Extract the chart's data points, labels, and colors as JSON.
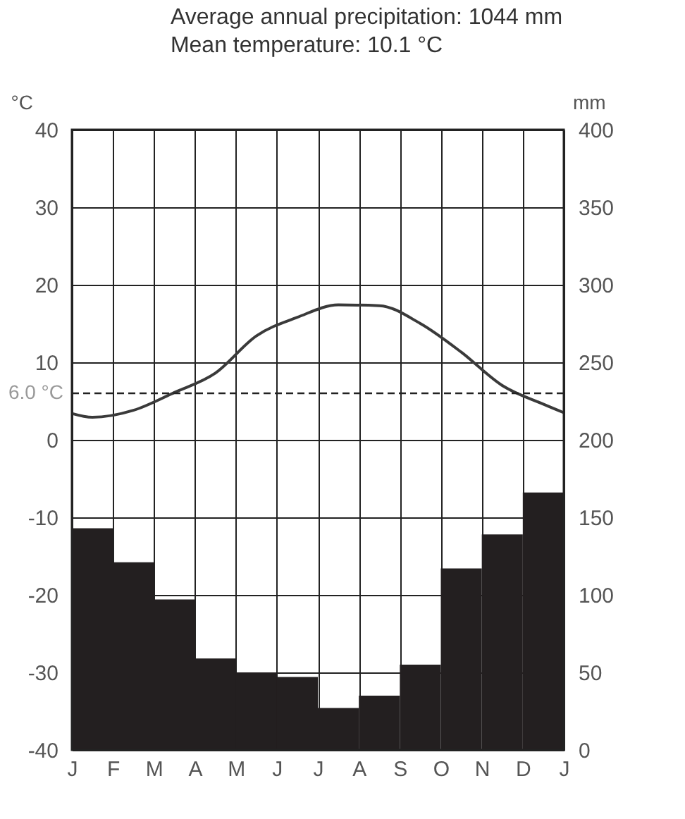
{
  "chart_data": {
    "type": "bar",
    "title": "Average annual precipitation:  1044 mm",
    "subtitle": "Mean temperature:  10.1 °C",
    "ylabel": "°C",
    "y2label": "mm",
    "categories": [
      "J",
      null,
      "F",
      null,
      "M",
      null,
      "A",
      null,
      "M",
      null,
      "J",
      null,
      "J",
      null,
      "A",
      null,
      "S",
      null,
      "O",
      null,
      "N",
      null,
      "D",
      null,
      "J"
    ],
    "ylim": [
      -40,
      40
    ],
    "yticks": [
      -40,
      -30,
      -20,
      -10,
      0,
      10,
      20,
      30,
      40
    ],
    "y2lim": [
      0,
      400
    ],
    "y2ticks": [
      0,
      50,
      100,
      150,
      200,
      250,
      300,
      350,
      400
    ],
    "series": [
      {
        "axis": "y2",
        "color": "#231f20",
        "values": [
          null,
          143,
          null,
          121,
          null,
          97,
          null,
          59,
          null,
          50,
          null,
          47,
          null,
          27,
          null,
          35,
          null,
          55,
          null,
          117,
          null,
          139,
          null,
          166,
          null
        ]
      },
      {
        "type": "line",
        "axis": "y",
        "color": "#3a3a3a",
        "values": [
          3.4,
          2.9,
          null,
          3.8,
          null,
          6.1,
          null,
          8.6,
          null,
          13.4,
          null,
          15.8,
          null,
          17.4,
          null,
          17.3,
          null,
          15.0,
          null,
          11.3,
          null,
          7.0,
          null,
          4.6,
          3.5
        ]
      }
    ],
    "ref_lines": [
      {
        "axis": "y",
        "value": 6.0,
        "label": "6.0 °C",
        "color": "#222222",
        "line_style": "dashed"
      }
    ],
    "grid": true
  }
}
